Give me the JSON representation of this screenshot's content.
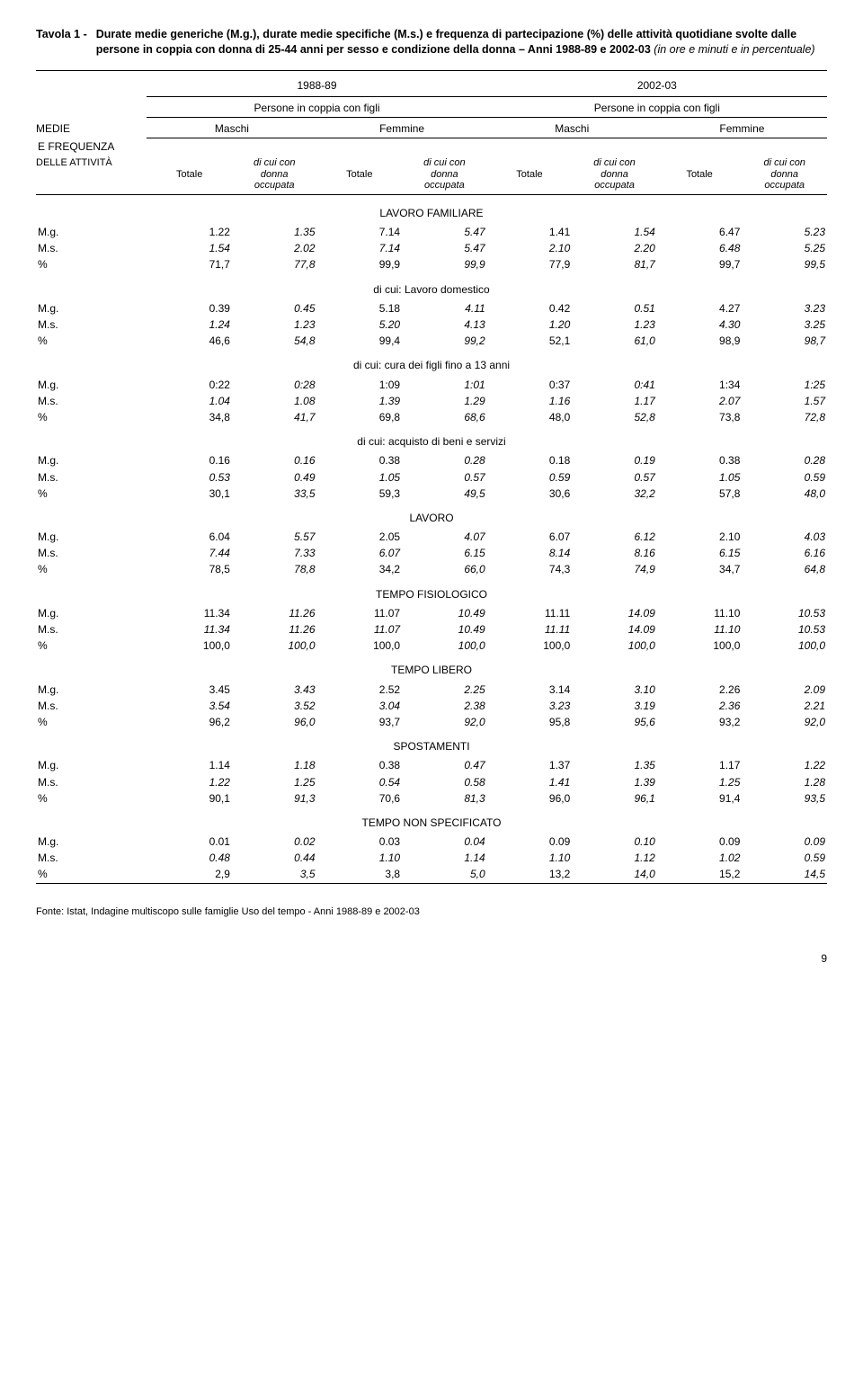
{
  "title": {
    "tavola": "Tavola 1 -",
    "main": "Durate medie generiche (M.g.), durate medie specifiche (M.s.) e frequenza di partecipazione (%) delle attività quotidiane svolte dalle persone in coppia con donna di 25-44 anni per sesso e condizione della donna – Anni 1988-89 e 2002-03 ",
    "ital": "(in ore e minuti e in percentuale)"
  },
  "header": {
    "period_a": "1988-89",
    "period_b": "2002-03",
    "persone": "Persone in coppia con figli",
    "rowhead1": "MEDIE",
    "rowhead2": "E FREQUENZA",
    "rowhead3": "DELLE ATTIVITÀ",
    "maschi": "Maschi",
    "femmine": "Femmine",
    "totale": "Totale",
    "dicui1": "di cui con",
    "dicui2": "donna",
    "dicui3": "occupata"
  },
  "rows": {
    "mg": "M.g.",
    "ms": "M.s.",
    "pct": "%"
  },
  "sections": [
    {
      "name": "LAVORO FAMILIARE",
      "data": [
        [
          "1.22",
          "1.35",
          "7.14",
          "5.47",
          "1.41",
          "1.54",
          "6.47",
          "5.23"
        ],
        [
          "1.54",
          "2.02",
          "7.14",
          "5.47",
          "2.10",
          "2.20",
          "6.48",
          "5.25"
        ],
        [
          "71,7",
          "77,8",
          "99,9",
          "99,9",
          "77,9",
          "81,7",
          "99,7",
          "99,5"
        ]
      ]
    },
    {
      "name": "di cui: Lavoro domestico",
      "data": [
        [
          "0.39",
          "0.45",
          "5.18",
          "4.11",
          "0.42",
          "0.51",
          "4.27",
          "3.23"
        ],
        [
          "1.24",
          "1.23",
          "5.20",
          "4.13",
          "1.20",
          "1.23",
          "4.30",
          "3.25"
        ],
        [
          "46,6",
          "54,8",
          "99,4",
          "99,2",
          "52,1",
          "61,0",
          "98,9",
          "98,7"
        ]
      ]
    },
    {
      "name": "di cui: cura dei figli fino a 13 anni",
      "data": [
        [
          "0:22",
          "0:28",
          "1:09",
          "1:01",
          "0:37",
          "0:41",
          "1:34",
          "1:25"
        ],
        [
          "1.04",
          "1.08",
          "1.39",
          "1.29",
          "1.16",
          "1.17",
          "2.07",
          "1.57"
        ],
        [
          "34,8",
          "41,7",
          "69,8",
          "68,6",
          "48,0",
          "52,8",
          "73,8",
          "72,8"
        ]
      ]
    },
    {
      "name": "di cui:  acquisto di beni e servizi",
      "data": [
        [
          "0.16",
          "0.16",
          "0.38",
          "0.28",
          "0.18",
          "0.19",
          "0.38",
          "0.28"
        ],
        [
          "0.53",
          "0.49",
          "1.05",
          "0.57",
          "0.59",
          "0.57",
          "1.05",
          "0.59"
        ],
        [
          "30,1",
          "33,5",
          "59,3",
          "49,5",
          "30,6",
          "32,2",
          "57,8",
          "48,0"
        ]
      ]
    },
    {
      "name": "LAVORO",
      "data": [
        [
          "6.04",
          "5.57",
          "2.05",
          "4.07",
          "6.07",
          "6.12",
          "2.10",
          "4.03"
        ],
        [
          "7.44",
          "7.33",
          "6.07",
          "6.15",
          "8.14",
          "8.16",
          "6.15",
          "6.16"
        ],
        [
          "78,5",
          "78,8",
          "34,2",
          "66,0",
          "74,3",
          "74,9",
          "34,7",
          "64,8"
        ]
      ]
    },
    {
      "name": "TEMPO FISIOLOGICO",
      "data": [
        [
          "11.34",
          "11.26",
          "11.07",
          "10.49",
          "11.11",
          "14.09",
          "11.10",
          "10.53"
        ],
        [
          "11.34",
          "11.26",
          "11.07",
          "10.49",
          "11.11",
          "14.09",
          "11.10",
          "10.53"
        ],
        [
          "100,0",
          "100,0",
          "100,0",
          "100,0",
          "100,0",
          "100,0",
          "100,0",
          "100,0"
        ]
      ]
    },
    {
      "name": "TEMPO LIBERO",
      "data": [
        [
          "3.45",
          "3.43",
          "2.52",
          "2.25",
          "3.14",
          "3.10",
          "2.26",
          "2.09"
        ],
        [
          "3.54",
          "3.52",
          "3.04",
          "2.38",
          "3.23",
          "3.19",
          "2.36",
          "2.21"
        ],
        [
          "96,2",
          "96,0",
          "93,7",
          "92,0",
          "95,8",
          "95,6",
          "93,2",
          "92,0"
        ]
      ]
    },
    {
      "name": "SPOSTAMENTI",
      "data": [
        [
          "1.14",
          "1.18",
          "0.38",
          "0.47",
          "1.37",
          "1.35",
          "1.17",
          "1.22"
        ],
        [
          "1.22",
          "1.25",
          "0.54",
          "0.58",
          "1.41",
          "1.39",
          "1.25",
          "1.28"
        ],
        [
          "90,1",
          "91,3",
          "70,6",
          "81,3",
          "96,0",
          "96,1",
          "91,4",
          "93,5"
        ]
      ]
    },
    {
      "name": "TEMPO NON SPECIFICATO",
      "data": [
        [
          "0.01",
          "0.02",
          "0.03",
          "0.04",
          "0.09",
          "0.10",
          "0.09",
          "0.09"
        ],
        [
          "0.48",
          "0.44",
          "1.10",
          "1.14",
          "1.10",
          "1.12",
          "1.02",
          "0.59"
        ],
        [
          "2,9",
          "3,5",
          "3,8",
          "5,0",
          "13,2",
          "14,0",
          "15,2",
          "14,5"
        ]
      ]
    }
  ],
  "fonte": "Fonte: Istat, Indagine multiscopo sulle famiglie Uso del tempo - Anni 1988-89 e 2002-03",
  "page_number": "9",
  "style": {
    "italic_cols": [
      1,
      3,
      5,
      7
    ],
    "italic_ms_row": true
  }
}
